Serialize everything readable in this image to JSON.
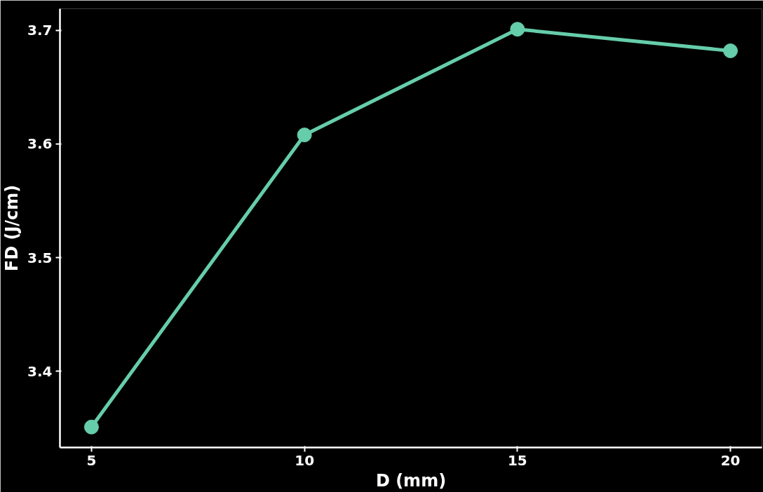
{
  "chart_data": {
    "type": "line",
    "xlabel": "D (mm)",
    "ylabel": "FD (J/cm)",
    "x": [
      5,
      10,
      15,
      20
    ],
    "series": [
      {
        "color": "#66cdaa",
        "values": [
          3.351,
          3.608,
          3.701,
          3.682
        ]
      }
    ],
    "xlim": [
      4.26,
      20.74
    ],
    "ylim": [
      3.333,
      3.719
    ],
    "xticks": [
      5,
      10,
      15,
      20
    ],
    "yticks": [
      3.4,
      3.5,
      3.6,
      3.7
    ],
    "grid": false,
    "marker": "circle",
    "line_style": "solid"
  }
}
